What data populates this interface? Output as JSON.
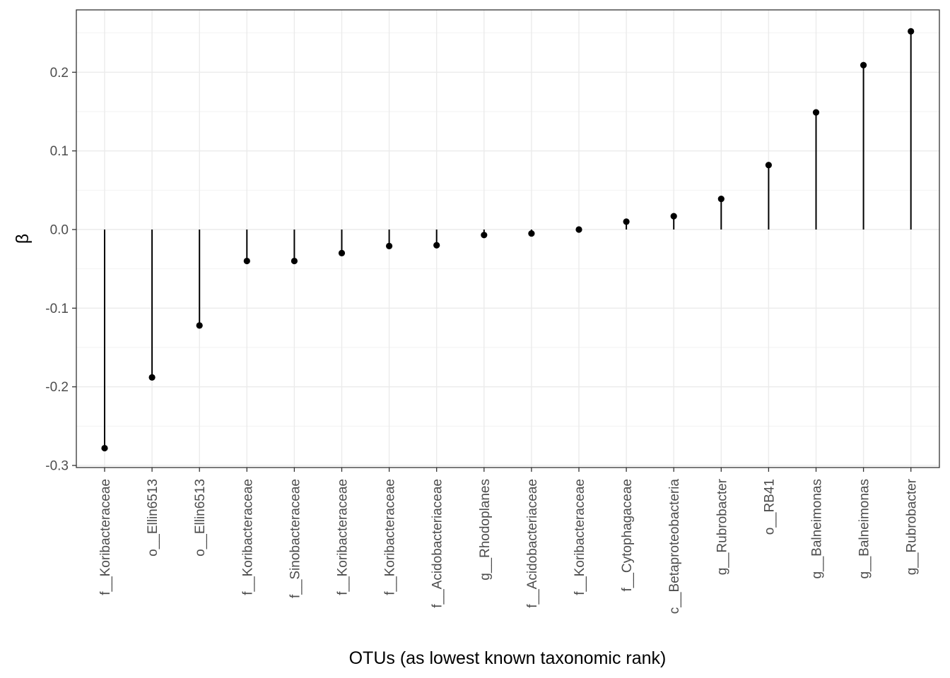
{
  "chart_data": {
    "type": "lollipop",
    "xlabel": "OTUs (as lowest known taxonomic rank)",
    "ylabel": "β",
    "ylim": [
      -0.3,
      0.26
    ],
    "yticks": [
      -0.3,
      -0.2,
      -0.1,
      0.0,
      0.1,
      0.2
    ],
    "ytick_labels": [
      "-0.3",
      "-0.2",
      "-0.1",
      "0.0",
      "0.1",
      "0.2"
    ],
    "grid": true,
    "categories": [
      "f__Koribacteraceae",
      "o__Ellin6513",
      "o__Ellin6513",
      "f__Koribacteraceae",
      "f__Sinobacteraceae",
      "f__Koribacteraceae",
      "f__Koribacteraceae",
      "f__Acidobacteriaceae",
      "g__Rhodoplanes",
      "f__Acidobacteriaceae",
      "f__Koribacteraceae",
      "f__Cytophagaceae",
      "c__Betaproteobacteria",
      "g__Rubrobacter",
      "o__RB41",
      "g__Balneimonas",
      "g__Balneimonas",
      "g__Rubrobacter"
    ],
    "values": [
      -0.278,
      -0.188,
      -0.122,
      -0.04,
      -0.04,
      -0.03,
      -0.021,
      -0.02,
      -0.007,
      -0.005,
      0.0,
      0.01,
      0.017,
      0.039,
      0.082,
      0.149,
      0.209,
      0.252
    ]
  }
}
